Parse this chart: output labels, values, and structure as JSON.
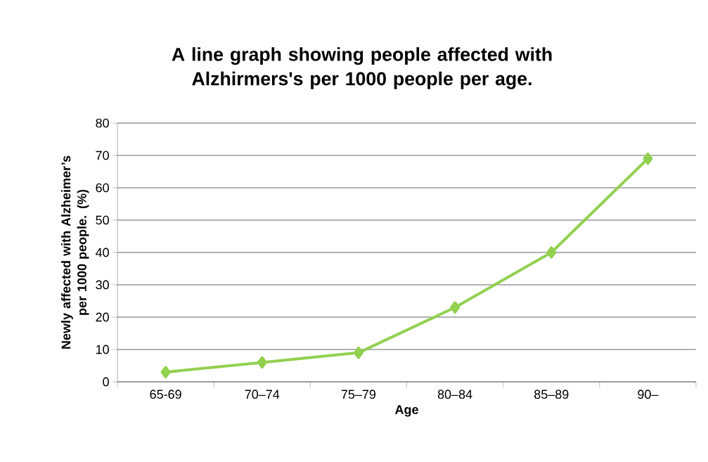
{
  "chart_data": {
    "type": "line",
    "title": "A line graph showing people affected with Alzhirmers's per 1000 people per age.",
    "xlabel": "Age",
    "ylabel": "Newly affected with Alzheimer’s per 1000 people. (%)",
    "categories": [
      "65-69",
      "70–74",
      "75–79",
      "80–84",
      "85–89",
      "90–"
    ],
    "series": [
      {
        "color": "#92d050",
        "values": [
          3,
          6,
          9,
          23,
          40,
          69
        ]
      }
    ],
    "ylim": [
      0,
      80
    ],
    "yticks": [
      0,
      10,
      20,
      30,
      40,
      50,
      60,
      70,
      80
    ],
    "grid": "y",
    "marker": "diamond",
    "line_style": "solid"
  }
}
